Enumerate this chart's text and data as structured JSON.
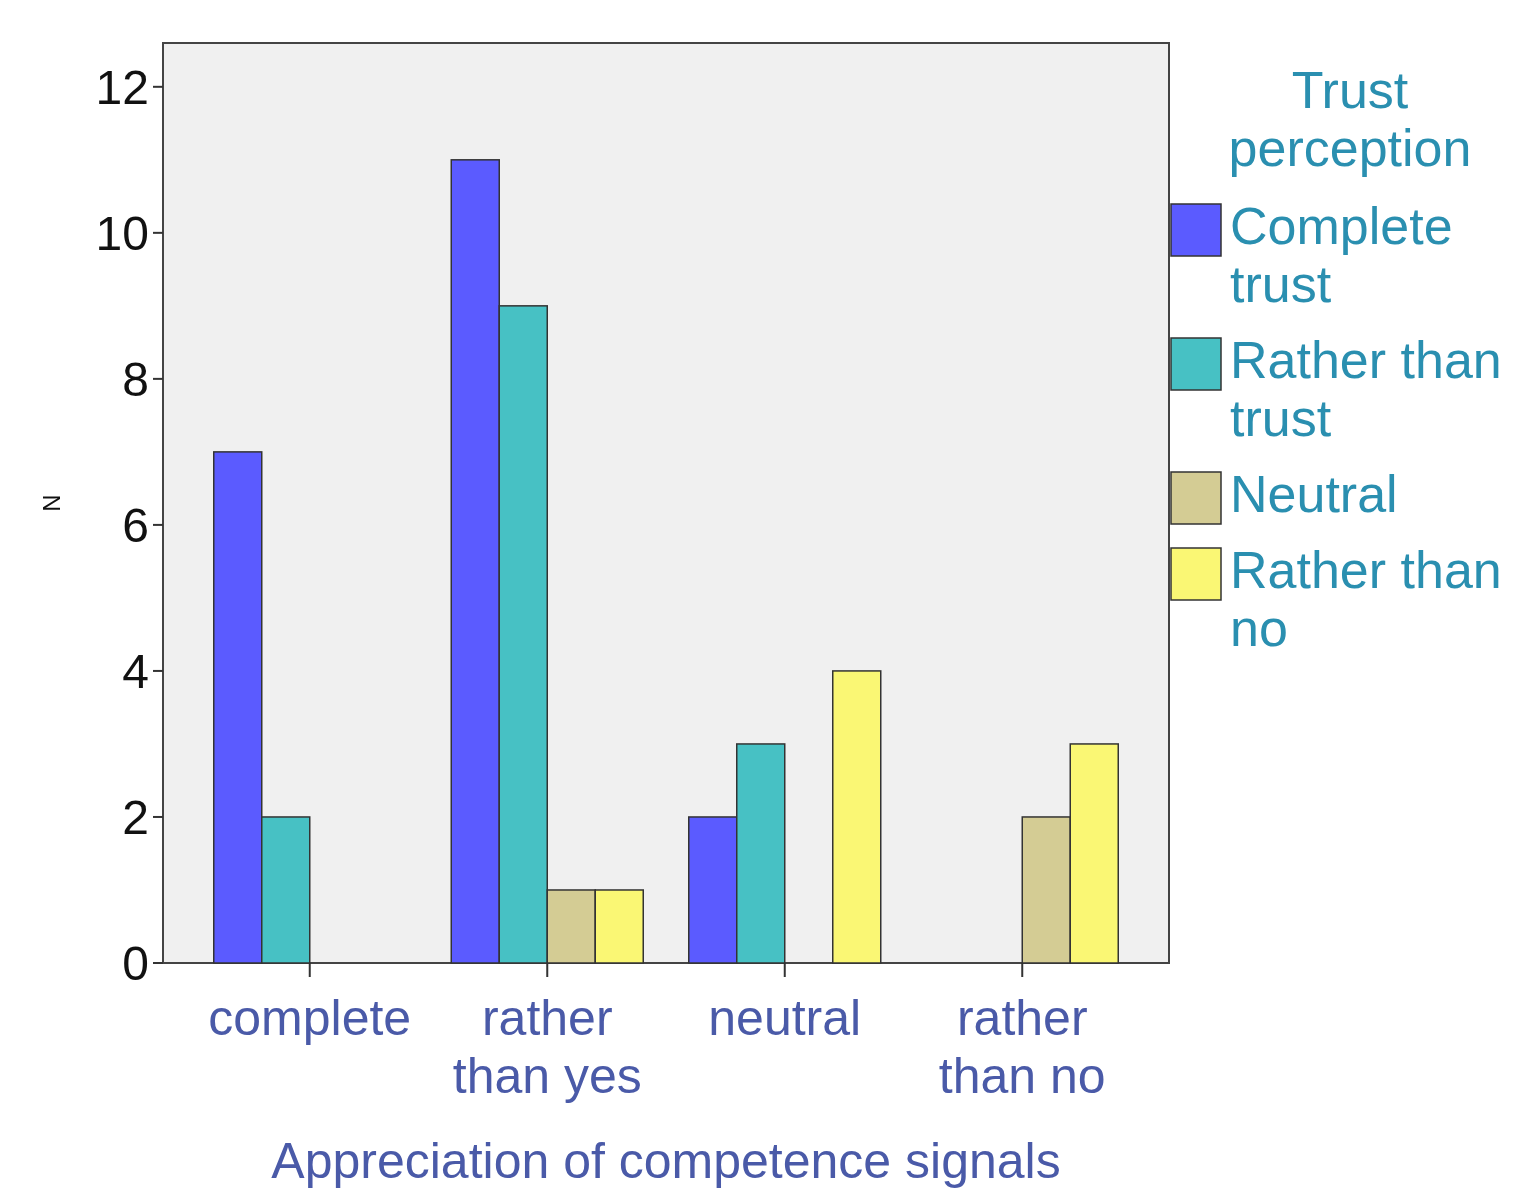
{
  "chart_data": {
    "type": "bar",
    "xlabel": "Appreciation of competence signals",
    "ylabel": "N",
    "legend_title": "Trust perception",
    "legend": "right",
    "grid": false,
    "categories": [
      "complete",
      "rather than yes",
      "neutral",
      "rather than no"
    ],
    "ylim": [
      0,
      12.6
    ],
    "yticks": [
      0,
      2,
      4,
      6,
      8,
      10,
      12
    ],
    "series": [
      {
        "name": "Complete trust",
        "color": "#5b5bff",
        "values": [
          7,
          11,
          2,
          null
        ]
      },
      {
        "name": "Rather than trust",
        "color": "#47c1c4",
        "values": [
          2,
          9,
          3,
          null
        ]
      },
      {
        "name": "Neutral",
        "color": "#d4cc94",
        "values": [
          null,
          1,
          null,
          2
        ]
      },
      {
        "name": "Rather than no",
        "color": "#faf774",
        "values": [
          null,
          1,
          4,
          3
        ]
      }
    ]
  }
}
